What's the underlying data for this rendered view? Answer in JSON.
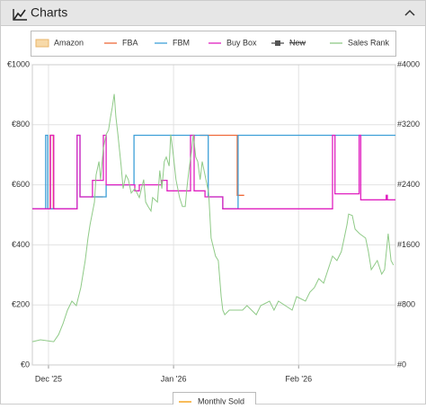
{
  "chart_data": {
    "type": "line",
    "title": "Charts",
    "xlim": [
      -4,
      86
    ],
    "xticks": [
      {
        "value": 0,
        "label": "Dec '25"
      },
      {
        "value": 31,
        "label": "Jan '26"
      },
      {
        "value": 62,
        "label": "Feb '26"
      }
    ],
    "ylim": [
      0,
      1000
    ],
    "yticks": [
      {
        "value": 0,
        "label": "€0"
      },
      {
        "value": 200,
        "label": "€200"
      },
      {
        "value": 400,
        "label": "€400"
      },
      {
        "value": 600,
        "label": "€600"
      },
      {
        "value": 800,
        "label": "€800"
      },
      {
        "value": 1000,
        "label": "€1000"
      }
    ],
    "y2lim": [
      0,
      4000
    ],
    "y2ticks": [
      {
        "value": 0,
        "label": "#0"
      },
      {
        "value": 800,
        "label": "#800"
      },
      {
        "value": 1600,
        "label": "#1600"
      },
      {
        "value": 2400,
        "label": "#2400"
      },
      {
        "value": 3200,
        "label": "#3200"
      },
      {
        "value": 4000,
        "label": "#4000"
      }
    ],
    "grid": true,
    "series": [
      {
        "name": "Amazon",
        "color": "#f7d9a8",
        "legend_icon": "box",
        "x": [],
        "values": []
      },
      {
        "name": "FBA",
        "color": "#ef6a3a",
        "x": [
          0.4,
          0.4,
          1.2,
          1.2,
          5,
          10.6,
          13.5,
          20,
          37.5,
          46.8,
          46.8,
          48.5
        ],
        "values": [
          520,
          765,
          765,
          520,
          null,
          560,
          560,
          null,
          765,
          765,
          565,
          565
        ]
      },
      {
        "name": "FBM",
        "color": "#3ea0d8",
        "x": [
          -4,
          -0.7,
          -0.7,
          -0.2,
          -0.2,
          7.1,
          7.1,
          7.8,
          7.8,
          14.3,
          14.3,
          21.2,
          21.2,
          39.6,
          39.6,
          43.2,
          43.2,
          47,
          47,
          86
        ],
        "values": [
          520,
          520,
          765,
          765,
          520,
          520,
          765,
          765,
          560,
          560,
          600,
          600,
          765,
          765,
          560,
          560,
          520,
          520,
          765,
          765
        ]
      },
      {
        "name": "Buy Box",
        "color": "#e020c0",
        "x": [
          -4,
          0.5,
          0.5,
          1.3,
          1.3,
          7.1,
          7.1,
          7.8,
          7.8,
          10.9,
          10.9,
          13.6,
          13.6,
          14.3,
          14.3,
          21.4,
          21.4,
          22.5,
          22.5,
          28.1,
          28.1,
          29.4,
          29.4,
          35.2,
          35.2,
          36.1,
          36.1,
          38.8,
          38.8,
          43.2,
          43.2,
          70.4,
          70.4,
          71,
          71,
          77,
          77,
          77.4,
          77.4,
          83.7,
          83.7,
          84,
          84,
          86
        ],
        "values": [
          520,
          520,
          765,
          765,
          520,
          520,
          765,
          765,
          560,
          560,
          615,
          615,
          765,
          765,
          600,
          600,
          580,
          580,
          600,
          600,
          615,
          615,
          580,
          580,
          765,
          765,
          580,
          580,
          560,
          560,
          520,
          520,
          765,
          765,
          570,
          570,
          765,
          765,
          550,
          550,
          565,
          565,
          550,
          550
        ]
      },
      {
        "name": "New",
        "color": "#555555",
        "hidden": true,
        "x": [],
        "values": []
      },
      {
        "name": "Sales Rank",
        "color": "#8fca87",
        "axis": "y2",
        "x": [
          -4,
          -2,
          1.3,
          2.5,
          3.6,
          4.7,
          5.8,
          6.9,
          8,
          9.1,
          9.8,
          10.3,
          11.4,
          11.8,
          12.5,
          12.9,
          13.6,
          14.3,
          14.9,
          15.4,
          15.8,
          16.3,
          16.7,
          17.2,
          18,
          18.5,
          19.2,
          19.8,
          20.5,
          21.4,
          22.5,
          23.6,
          24.1,
          24.7,
          25.4,
          25.8,
          27,
          27.6,
          28.1,
          28.7,
          29.2,
          29.9,
          30.3,
          31,
          31.6,
          32.5,
          33.2,
          33.9,
          34.3,
          34.8,
          35.4,
          35.9,
          36.5,
          37,
          37.6,
          38.1,
          38.8,
          39.7,
          40.3,
          41.4,
          42.1,
          42.8,
          43.2,
          43.7,
          44.8,
          47,
          48.1,
          49.2,
          51.5,
          52.6,
          54.8,
          55.9,
          57,
          60.4,
          61.5,
          63.7,
          64.8,
          65.9,
          67,
          68.2,
          69.3,
          70.4,
          71.5,
          72.6,
          73.3,
          74,
          74.4,
          75.3,
          76,
          77.1,
          78.6,
          79.3,
          80,
          81.5,
          82.6,
          83.3,
          84.2,
          84.9,
          85.5
        ],
        "values": [
          310,
          335,
          310,
          405,
          550,
          730,
          850,
          790,
          1030,
          1390,
          1690,
          1870,
          2170,
          2530,
          2710,
          2470,
          2890,
          3070,
          3130,
          3310,
          3430,
          3610,
          3310,
          3070,
          2650,
          2350,
          2530,
          2470,
          2290,
          2350,
          2230,
          2470,
          2170,
          2110,
          2050,
          2230,
          2170,
          2590,
          2350,
          2710,
          2770,
          2650,
          3070,
          2770,
          2470,
          2230,
          2110,
          2110,
          2350,
          2590,
          2830,
          3070,
          2770,
          2710,
          2470,
          2710,
          2530,
          2290,
          1690,
          1450,
          1390,
          910,
          730,
          670,
          730,
          730,
          730,
          790,
          670,
          790,
          850,
          730,
          850,
          730,
          910,
          850,
          970,
          1030,
          1150,
          1090,
          1270,
          1450,
          1390,
          1510,
          1690,
          1870,
          2010,
          1990,
          1810,
          1750,
          1690,
          1510,
          1270,
          1390,
          1210,
          1270,
          1750,
          1390,
          1330
        ]
      }
    ],
    "secondary_legend": {
      "name": "Monthly Sold",
      "color": "#f5a623"
    }
  }
}
